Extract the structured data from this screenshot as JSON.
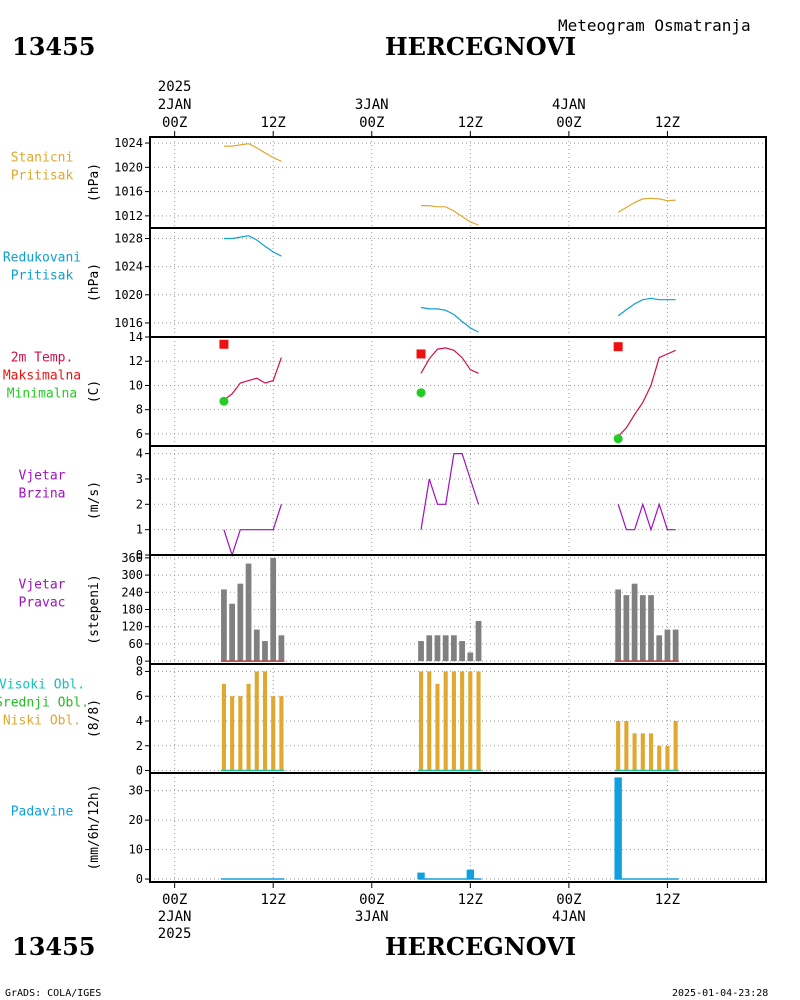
{
  "header": {
    "station_id": "13455",
    "station_name": "HERCEGNOVI",
    "subtitle": "Meteogram Osmatranja"
  },
  "footer": {
    "station_id": "13455",
    "station_name": "HERCEGNOVI",
    "credit": "GrADS: COLA/IGES",
    "timestamp": "2025-01-04-23:28"
  },
  "colors": {
    "pressure": "#e0a830",
    "reduced_pressure": "#10a0d0",
    "temperature": "#d0104a",
    "tmax": "#ee1111",
    "tmin": "#22cc22",
    "wind_speed": "#a010c0",
    "wind_dir": "#808080",
    "wind_dir_base": "#c04040",
    "high_clouds": "#10c0c0",
    "mid_clouds": "#20c020",
    "low_clouds": "#e0a830",
    "precip": "#10a0e0"
  },
  "top_axis": {
    "year_label": "2025",
    "ticks": [
      {
        "x": 0,
        "lines": [
          "2JAN",
          "00Z"
        ]
      },
      {
        "x": 12,
        "lines": [
          "",
          "12Z"
        ]
      },
      {
        "x": 24,
        "lines": [
          "3JAN",
          "00Z"
        ]
      },
      {
        "x": 36,
        "lines": [
          "",
          "12Z"
        ]
      },
      {
        "x": 48,
        "lines": [
          "4JAN",
          "00Z"
        ]
      },
      {
        "x": 60,
        "lines": [
          "",
          "12Z"
        ]
      }
    ]
  },
  "bottom_axis": {
    "year_label": "2025",
    "ticks": [
      {
        "x": 0,
        "lines": [
          "00Z",
          "2JAN"
        ]
      },
      {
        "x": 12,
        "lines": [
          "12Z",
          ""
        ]
      },
      {
        "x": 24,
        "lines": [
          "00Z",
          "3JAN"
        ]
      },
      {
        "x": 36,
        "lines": [
          "12Z",
          ""
        ]
      },
      {
        "x": 48,
        "lines": [
          "00Z",
          "4JAN"
        ]
      },
      {
        "x": 60,
        "lines": [
          "12Z",
          ""
        ]
      }
    ]
  },
  "chart_data": [
    {
      "type": "line",
      "side_labels": [
        {
          "text": "Stanicni",
          "color": "#e0a830"
        },
        {
          "text": "Pritisak",
          "color": "#e0a830"
        }
      ],
      "ylabel": "(hPa)",
      "ylim": [
        1010,
        1025
      ],
      "yticks": [
        1012,
        1016,
        1020,
        1024
      ],
      "series": [
        {
          "color": "#e0a830",
          "segments": [
            {
              "x": [
                6,
                7,
                8,
                9,
                10,
                11,
                12,
                13
              ],
              "y": [
                1023.5,
                1023.5,
                1023.7,
                1023.9,
                1023.2,
                1022.4,
                1021.6,
                1021.0
              ]
            },
            {
              "x": [
                30,
                31,
                32,
                33,
                34,
                35,
                36,
                37
              ],
              "y": [
                1013.7,
                1013.7,
                1013.5,
                1013.5,
                1012.8,
                1011.9,
                1011.0,
                1010.5
              ]
            },
            {
              "x": [
                54,
                55,
                56,
                57,
                58,
                59,
                60,
                61
              ],
              "y": [
                1012.6,
                1013.4,
                1014.2,
                1014.8,
                1014.9,
                1014.8,
                1014.5,
                1014.6
              ]
            }
          ]
        }
      ],
      "markers": [],
      "bars": []
    },
    {
      "type": "line",
      "side_labels": [
        {
          "text": "Redukovani",
          "color": "#10a0d0"
        },
        {
          "text": "Pritisak",
          "color": "#10a0d0"
        }
      ],
      "ylabel": "(hPa)",
      "ylim": [
        1014,
        1029.5
      ],
      "yticks": [
        1016,
        1020,
        1024,
        1028
      ],
      "series": [
        {
          "color": "#10a0d0",
          "segments": [
            {
              "x": [
                6,
                7,
                8,
                9,
                10,
                11,
                12,
                13
              ],
              "y": [
                1028.0,
                1028.0,
                1028.2,
                1028.4,
                1027.8,
                1026.9,
                1026.1,
                1025.5
              ]
            },
            {
              "x": [
                30,
                31,
                32,
                33,
                34,
                35,
                36,
                37
              ],
              "y": [
                1018.2,
                1018.0,
                1018.0,
                1017.8,
                1017.2,
                1016.2,
                1015.3,
                1014.7
              ]
            },
            {
              "x": [
                54,
                55,
                56,
                57,
                58,
                59,
                60,
                61
              ],
              "y": [
                1017.0,
                1017.9,
                1018.7,
                1019.3,
                1019.5,
                1019.3,
                1019.3,
                1019.3
              ]
            }
          ]
        }
      ],
      "markers": [],
      "bars": []
    },
    {
      "type": "line",
      "side_labels": [
        {
          "text": "2m Temp.",
          "color": "#d0104a"
        },
        {
          "text": "Maksimalna",
          "color": "#ee1111"
        },
        {
          "text": "Minimalna",
          "color": "#22cc22"
        }
      ],
      "ylabel": "(C)",
      "ylim": [
        5,
        14
      ],
      "yticks": [
        6,
        8,
        10,
        12,
        14
      ],
      "series": [
        {
          "color": "#d0104a",
          "segments": [
            {
              "x": [
                6,
                7,
                8,
                9,
                10,
                11,
                12,
                13
              ],
              "y": [
                8.8,
                9.3,
                10.2,
                10.4,
                10.6,
                10.2,
                10.4,
                12.3
              ]
            },
            {
              "x": [
                30,
                31,
                32,
                33,
                34,
                35,
                36,
                37
              ],
              "y": [
                11.0,
                12.2,
                13.0,
                13.1,
                12.9,
                12.3,
                11.3,
                11.0
              ]
            },
            {
              "x": [
                54,
                55,
                56,
                57,
                58,
                59,
                60,
                61
              ],
              "y": [
                5.8,
                6.5,
                7.6,
                8.6,
                10.0,
                12.3,
                12.6,
                12.9
              ]
            }
          ]
        }
      ],
      "markers": [
        {
          "shape": "square",
          "color": "#ee1111",
          "x": 6,
          "y": 13.4
        },
        {
          "shape": "square",
          "color": "#ee1111",
          "x": 30,
          "y": 12.6
        },
        {
          "shape": "square",
          "color": "#ee1111",
          "x": 54,
          "y": 13.2
        },
        {
          "shape": "circle",
          "color": "#22cc22",
          "x": 6,
          "y": 8.7
        },
        {
          "shape": "circle",
          "color": "#22cc22",
          "x": 30,
          "y": 9.4
        },
        {
          "shape": "circle",
          "color": "#22cc22",
          "x": 54,
          "y": 5.6
        }
      ],
      "bars": []
    },
    {
      "type": "line",
      "side_labels": [
        {
          "text": "Vjetar",
          "color": "#a010c0"
        },
        {
          "text": "Brzina",
          "color": "#a010c0"
        }
      ],
      "ylabel": "(m/s)",
      "ylim": [
        0,
        4.3
      ],
      "yticks": [
        0,
        1,
        2,
        3,
        4
      ],
      "series": [
        {
          "color": "#a010c0",
          "segments": [
            {
              "x": [
                6,
                7,
                8,
                9,
                10,
                11,
                12,
                13
              ],
              "y": [
                1,
                0,
                1,
                1,
                1,
                1,
                1,
                2
              ]
            },
            {
              "x": [
                30,
                31,
                32,
                33,
                34,
                35,
                36,
                37
              ],
              "y": [
                1,
                3,
                2,
                2,
                4,
                4,
                3,
                2
              ]
            },
            {
              "x": [
                54,
                55,
                56,
                57,
                58,
                59,
                60,
                61
              ],
              "y": [
                2,
                1,
                1,
                2,
                1,
                2,
                1,
                1
              ]
            }
          ]
        }
      ],
      "markers": [],
      "bars": []
    },
    {
      "type": "bar",
      "side_labels": [
        {
          "text": "Vjetar",
          "color": "#a010c0"
        },
        {
          "text": "Pravac",
          "color": "#a010c0"
        }
      ],
      "ylabel": "(stepeni)",
      "ylim": [
        -10,
        370
      ],
      "yticks": [
        0,
        60,
        120,
        180,
        240,
        300,
        360
      ],
      "series": [],
      "markers": [],
      "bars": [
        {
          "color": "#808080",
          "width": 0.7,
          "offset": 0,
          "x": [
            6,
            7,
            8,
            9,
            10,
            11,
            12,
            13,
            30,
            31,
            32,
            33,
            34,
            35,
            36,
            37,
            54,
            55,
            56,
            57,
            58,
            59,
            60,
            61
          ],
          "values": [
            250,
            200,
            270,
            340,
            110,
            70,
            360,
            90,
            70,
            90,
            90,
            90,
            90,
            70,
            30,
            140,
            250,
            230,
            270,
            230,
            230,
            90,
            110,
            110
          ]
        }
      ],
      "base_segments": [
        [
          6,
          13
        ],
        [
          54,
          61
        ]
      ],
      "base_color": "#c04040"
    },
    {
      "type": "bar",
      "side_labels": [
        {
          "text": "Visoki Obl.",
          "color": "#10c0c0"
        },
        {
          "text": "Srednji Obl.",
          "color": "#20c020"
        },
        {
          "text": "Niski Obl.",
          "color": "#e0a830"
        }
      ],
      "ylabel": "(8/8)",
      "ylim": [
        -0.2,
        8.6
      ],
      "yticks": [
        0,
        2,
        4,
        6,
        8
      ],
      "series": [],
      "markers": [],
      "bars": [
        {
          "color": "#e0a830",
          "width": 0.5,
          "offset": 0,
          "x": [
            6,
            7,
            8,
            9,
            10,
            11,
            12,
            13,
            30,
            31,
            32,
            33,
            34,
            35,
            36,
            37,
            54,
            55,
            56,
            57,
            58,
            59,
            60,
            61
          ],
          "values": [
            7,
            6,
            6,
            7,
            8,
            8,
            6,
            6,
            8,
            8,
            7,
            8,
            8,
            8,
            8,
            8,
            4,
            4,
            3,
            3,
            3,
            2,
            2,
            4
          ]
        }
      ],
      "base_segments": [
        [
          6,
          13
        ],
        [
          30,
          37
        ],
        [
          54,
          61
        ]
      ],
      "base_color": "#20c0a0"
    },
    {
      "type": "bar",
      "side_labels": [
        {
          "text": "Padavine",
          "color": "#10a0e0"
        }
      ],
      "ylabel": "(mm/6h/12h)",
      "ylim": [
        -1,
        36
      ],
      "yticks": [
        0,
        10,
        20,
        30
      ],
      "series": [],
      "markers": [],
      "bars": [
        {
          "color": "#10a0e0",
          "width": 0.9,
          "offset": 0,
          "x": [
            30,
            36,
            54
          ],
          "values": [
            2.2,
            3.2,
            34.5
          ]
        }
      ],
      "base_segments": [
        [
          6,
          13
        ],
        [
          30,
          37
        ],
        [
          54,
          61
        ]
      ],
      "base_color": "#10a0e0"
    }
  ]
}
